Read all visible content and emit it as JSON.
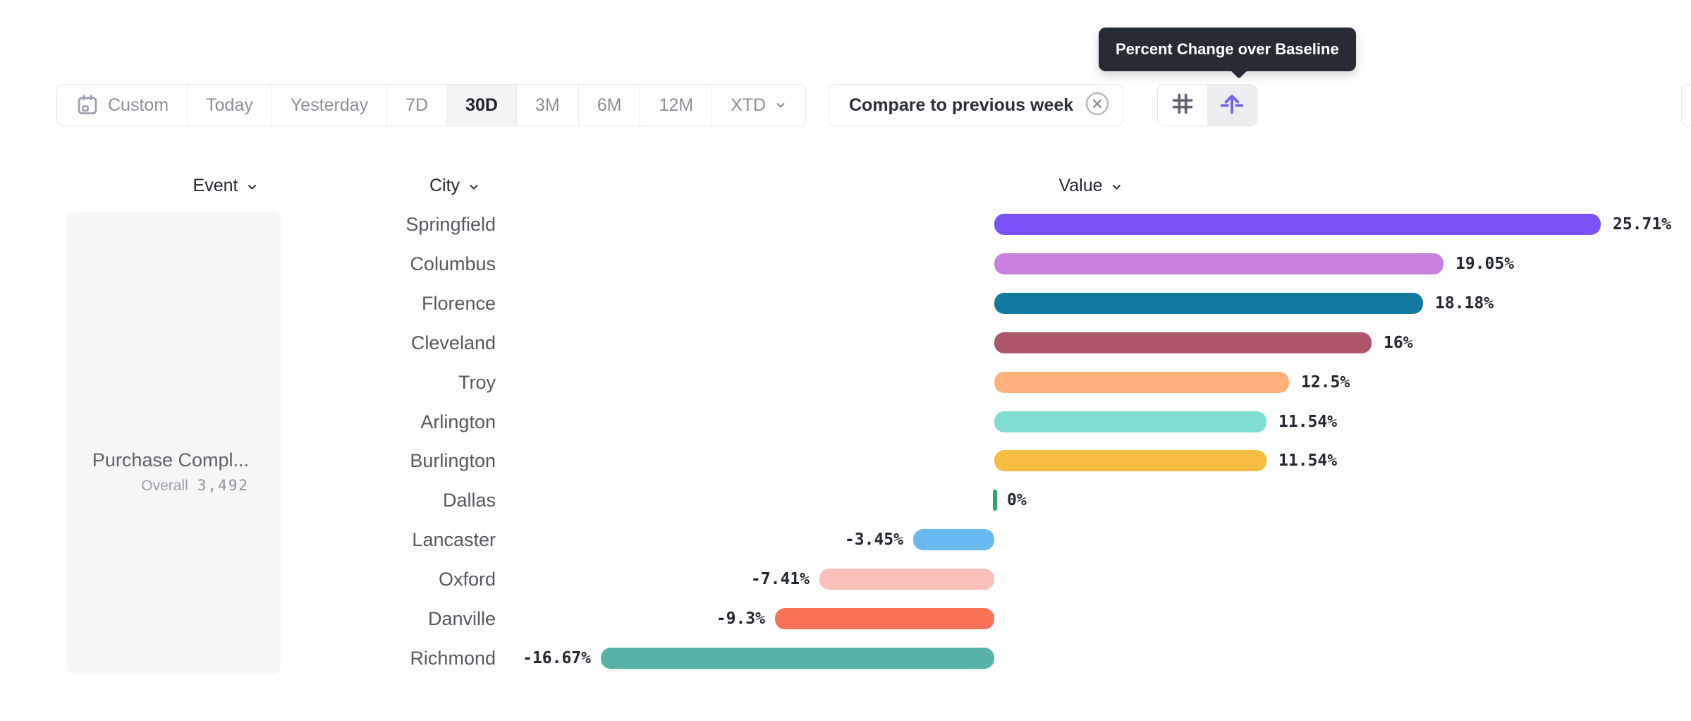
{
  "tooltip": {
    "text": "Percent Change over Baseline"
  },
  "toolbar": {
    "date_ranges": [
      {
        "label": "Custom",
        "icon": "calendar",
        "selected": false
      },
      {
        "label": "Today",
        "selected": false
      },
      {
        "label": "Yesterday",
        "selected": false
      },
      {
        "label": "7D",
        "selected": false
      },
      {
        "label": "30D",
        "selected": true
      },
      {
        "label": "3M",
        "selected": false
      },
      {
        "label": "6M",
        "selected": false
      },
      {
        "label": "12M",
        "selected": false
      },
      {
        "label": "XTD",
        "selected": false,
        "has_dropdown": true
      }
    ],
    "compare_label": "Compare to previous week",
    "view_toggles": [
      {
        "name": "uniform-axis",
        "icon": "hash-grid",
        "active": false
      },
      {
        "name": "percent-change-over-baseline",
        "icon": "baseline-arrow",
        "active": true
      }
    ]
  },
  "columns": {
    "event": "Event",
    "city": "City",
    "value": "Value"
  },
  "event_panel": {
    "title": "Purchase Compl...",
    "metric_label": "Overall",
    "metric_value": "3,492"
  },
  "chart_data": {
    "type": "bar",
    "orientation": "horizontal",
    "unit": "%",
    "baseline": 0,
    "xlim": [
      -16.67,
      25.71
    ],
    "categories": [
      "Springfield",
      "Columbus",
      "Florence",
      "Cleveland",
      "Troy",
      "Arlington",
      "Burlington",
      "Dallas",
      "Lancaster",
      "Oxford",
      "Danville",
      "Richmond"
    ],
    "values": [
      25.71,
      19.05,
      18.18,
      16,
      12.5,
      11.54,
      11.54,
      0,
      -3.45,
      -7.41,
      -9.3,
      -16.67
    ],
    "labels": [
      "25.71%",
      "19.05%",
      "18.18%",
      "16%",
      "12.5%",
      "11.54%",
      "11.54%",
      "0%",
      "-3.45%",
      "-7.41%",
      "-9.3%",
      "-16.67%"
    ],
    "colors": [
      "#7a52f7",
      "#c780dd",
      "#107a9f",
      "#ae5669",
      "#ffb07b",
      "#7fdcd2",
      "#f6bc3f",
      "#2ca861",
      "#69b9f0",
      "#fbbfb9",
      "#fa7256",
      "#57b3a8"
    ]
  },
  "icon_colors": {
    "accent_purple": "#7263f2",
    "hash_gray": "#5f646c",
    "calendar_gray": "#9aa0a8",
    "close_gray": "#b4b8bf"
  }
}
